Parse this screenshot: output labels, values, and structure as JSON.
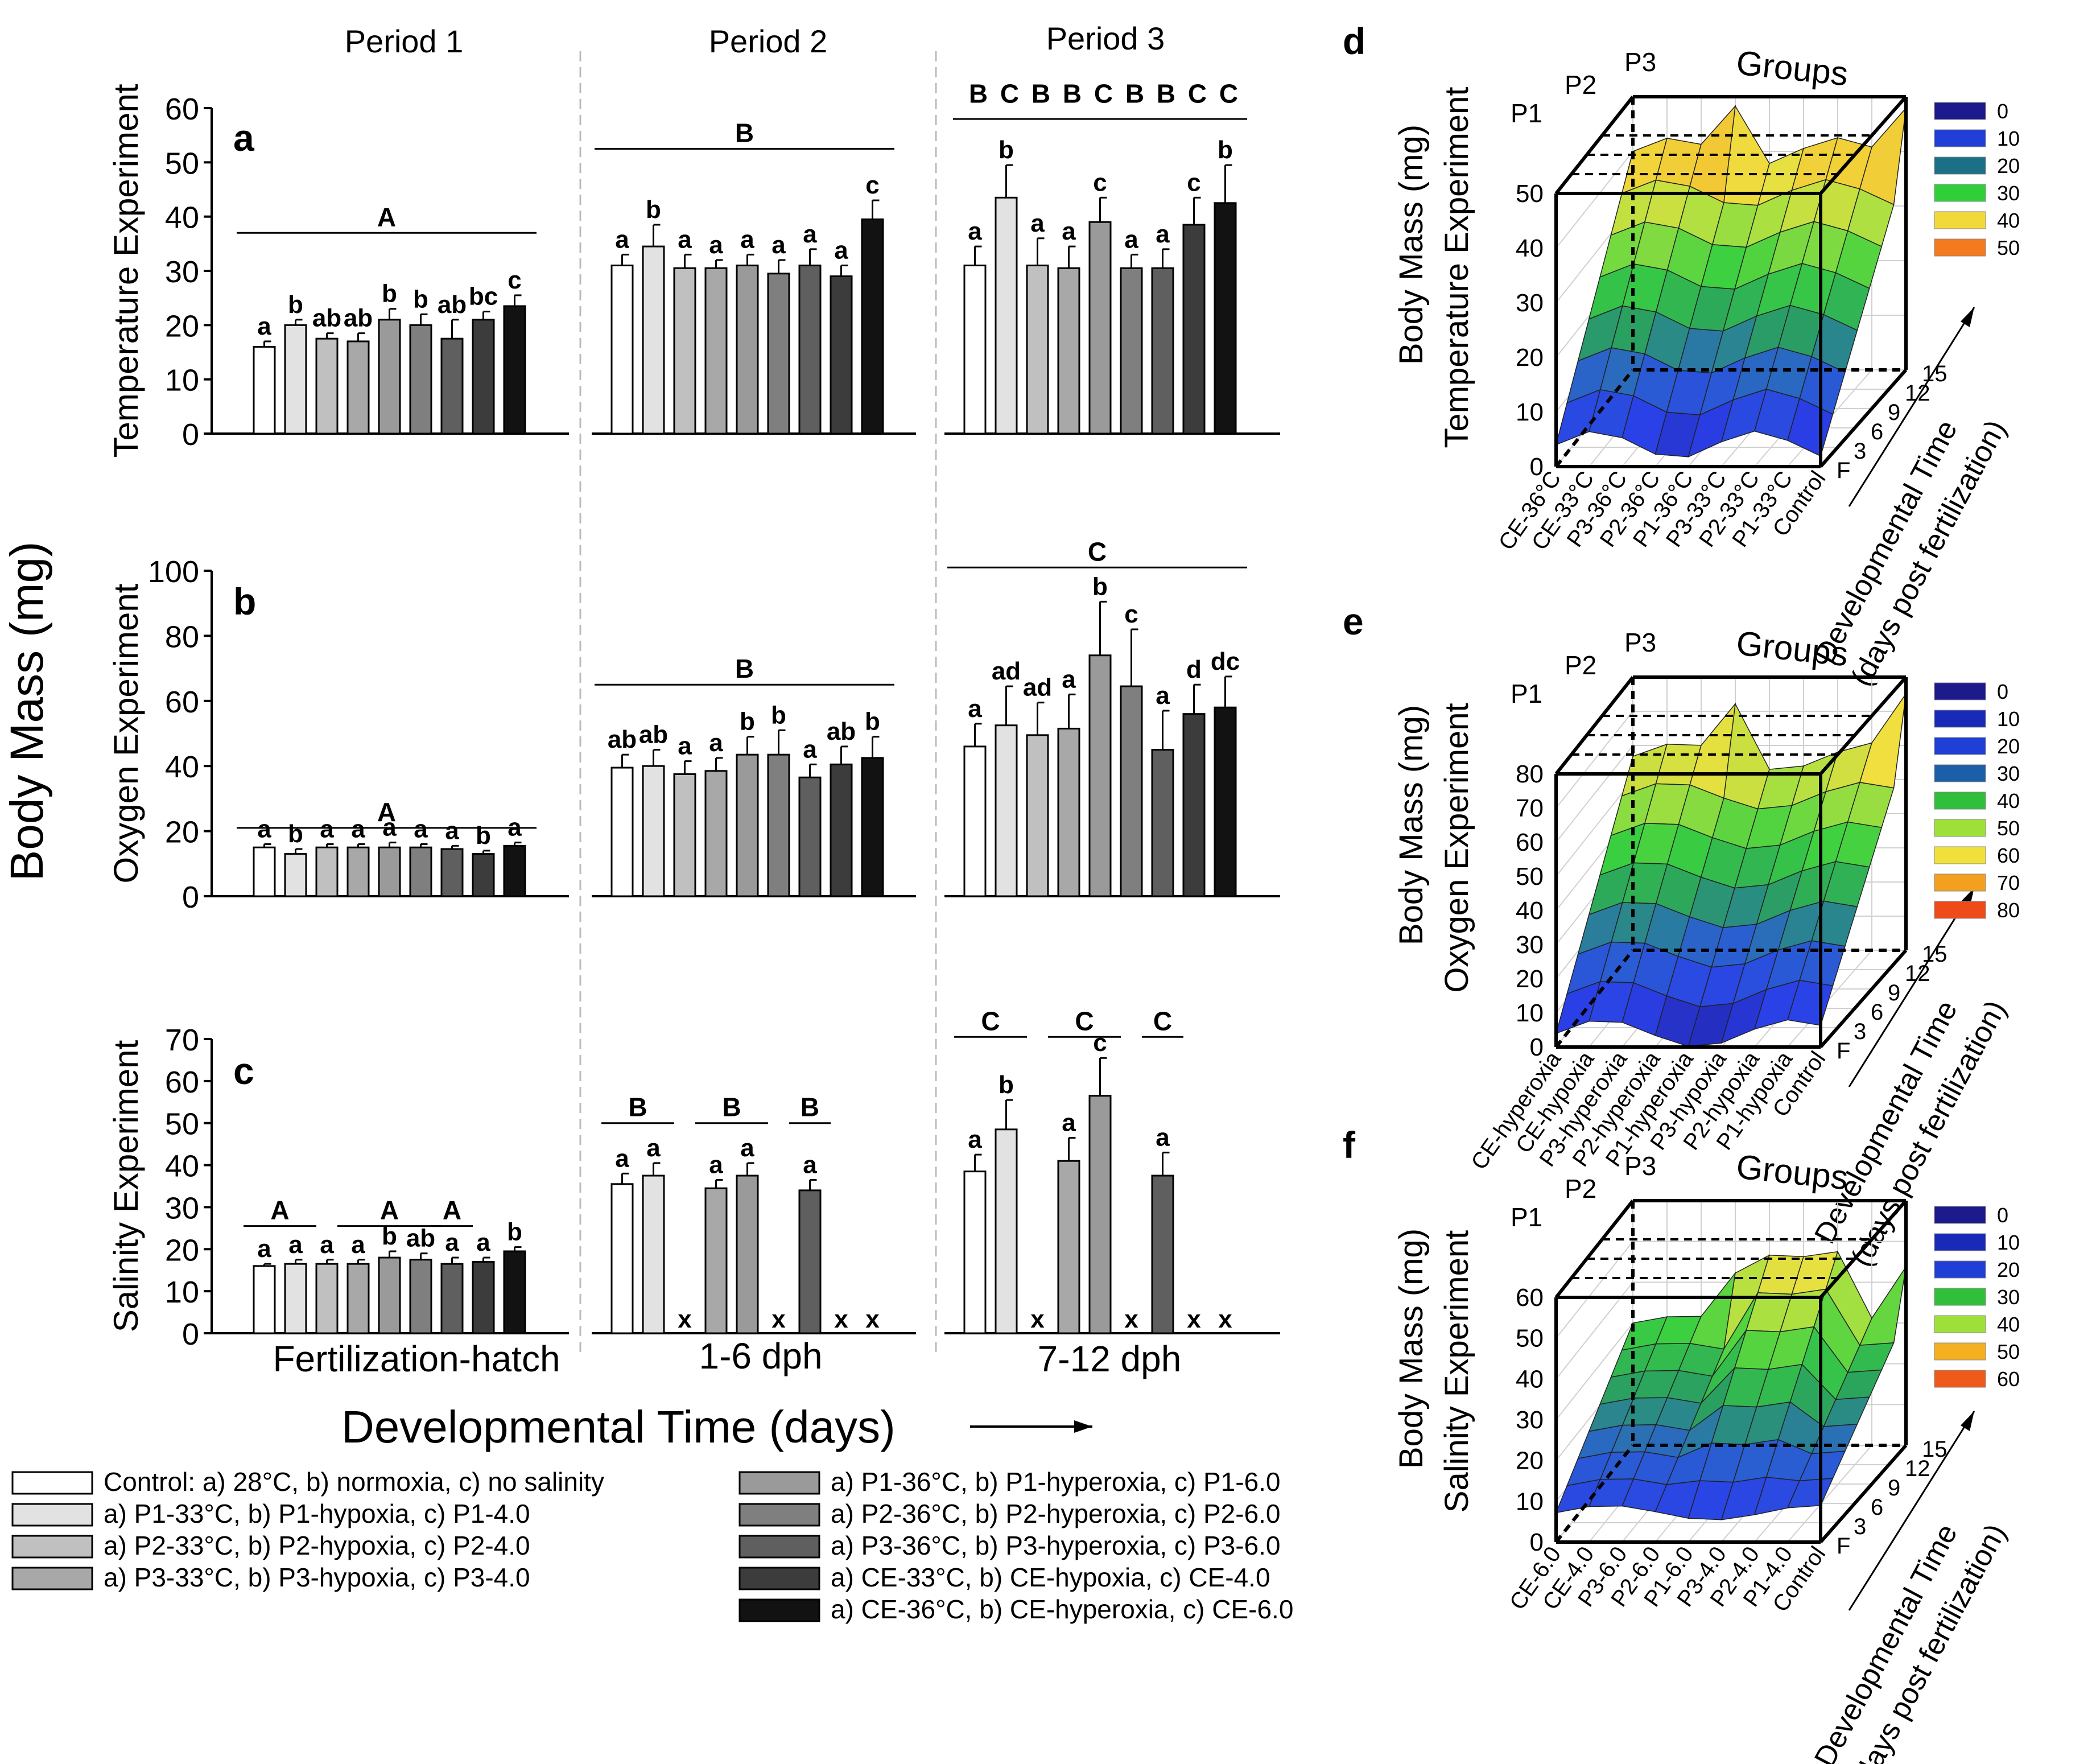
{
  "figure": {
    "ylabel_main": "Body Mass (mg)",
    "xlabel_main": "Developmental Time (days)",
    "arrow_char": "⟶"
  },
  "colors": {
    "grays": [
      "#ffffff",
      "#e2e2e2",
      "#c0c0c0",
      "#a8a8a8",
      "#9a9a9a",
      "#7f7f7f",
      "#5f5f5f",
      "#3c3c3c",
      "#121212"
    ]
  },
  "legend": {
    "items": [
      "Control: a) 28°C, b) normoxia, c) no salinity",
      "a) P1-33°C, b) P1-hypoxia, c) P1-4.0",
      "a) P2-33°C, b) P2-hypoxia, c) P2-4.0",
      "a) P3-33°C, b) P3-hypoxia, c) P3-4.0",
      "a) P1-36°C, b) P1-hyperoxia, c) P1-6.0",
      "a) P2-36°C, b) P2-hyperoxia, c) P2-6.0",
      "a) P3-36°C, b) P3-hyperoxia, c) P3-6.0",
      "a) CE-33°C, b) CE-hypoxia, c) CE-4.0",
      "a) CE-36°C, b) CE-hyperoxia, c) CE-6.0"
    ]
  },
  "chart_data": [
    {
      "id": "a",
      "type": "bar",
      "panel_label": "a",
      "ylabel": "Temperature Experiment",
      "ylim": [
        0,
        60
      ],
      "yticks": [
        "0",
        "10",
        "20",
        "30",
        "40",
        "50",
        "60"
      ],
      "period_titles": [
        "Period 1",
        "Period 2",
        "Period 3"
      ],
      "categories": [
        "Fertilization-hatch",
        "1-6 dph",
        "7-12 dph"
      ],
      "groups": [
        {
          "values": [
            16,
            20,
            17.5,
            17,
            21,
            20,
            17.5,
            21,
            23.5
          ],
          "errors": [
            1,
            1,
            1,
            1.5,
            2,
            2,
            3.5,
            1.5,
            2
          ],
          "letters": [
            "a",
            "b",
            "ab",
            "ab",
            "b",
            "b",
            "ab",
            "bc",
            "c"
          ]
        },
        {
          "values": [
            31,
            34.5,
            30.5,
            30.5,
            31,
            29.5,
            31,
            29,
            39.5
          ],
          "errors": [
            2,
            4,
            2.5,
            1.5,
            2,
            2.5,
            3,
            2,
            3.5
          ],
          "letters": [
            "a",
            "b",
            "a",
            "a",
            "a",
            "a",
            "a",
            "a",
            "c"
          ]
        },
        {
          "values": [
            31,
            43.5,
            31,
            30.5,
            39,
            30.5,
            30.5,
            38.5,
            42.5
          ],
          "errors": [
            3.5,
            6,
            5,
            4,
            4.5,
            2.5,
            3.5,
            5,
            7
          ],
          "letters": [
            "a",
            "b",
            "a",
            "a",
            "c",
            "a",
            "a",
            "c",
            "b"
          ]
        }
      ],
      "group_lines": [
        {
          "label": "A",
          "g0": 0,
          "g1": 0,
          "at": 37
        },
        {
          "label": "B",
          "g0": 1,
          "g1": 1,
          "at": 52.5
        }
      ],
      "top_letters": {
        "group": 2,
        "at": 61,
        "line_at": 58,
        "letters": [
          "B",
          "C",
          "B",
          "B",
          "C",
          "B",
          "B",
          "C",
          "C"
        ]
      },
      "missing": [
        [],
        [],
        []
      ]
    },
    {
      "id": "b",
      "type": "bar",
      "panel_label": "b",
      "ylabel": "Oxygen Experiment",
      "ylim": [
        0,
        100
      ],
      "yticks": [
        "0",
        "20",
        "40",
        "60",
        "80",
        "100"
      ],
      "categories": [
        "Fertilization-hatch",
        "1-6 dph",
        "7-12 dph"
      ],
      "groups": [
        {
          "values": [
            15,
            13,
            15,
            15,
            15,
            15,
            14.5,
            13,
            15.5
          ],
          "errors": [
            1,
            1.5,
            1,
            1,
            1.5,
            1,
            1,
            1,
            1
          ],
          "letters": [
            "a",
            "b",
            "a",
            "a",
            "a",
            "a",
            "a",
            "b",
            "a"
          ]
        },
        {
          "values": [
            39.5,
            40,
            37.5,
            38.5,
            43.5,
            43.5,
            36.5,
            40.5,
            42.5
          ],
          "errors": [
            4,
            5,
            4,
            4,
            5.5,
            7.5,
            4,
            5.5,
            6.5
          ],
          "letters": [
            "ab",
            "ab",
            "a",
            "a",
            "b",
            "b",
            "a",
            "ab",
            "b"
          ]
        },
        {
          "values": [
            46,
            52.5,
            49.5,
            51.5,
            74,
            64.5,
            45,
            56,
            58
          ],
          "errors": [
            7,
            12,
            10,
            10.5,
            16.5,
            17.5,
            12,
            9,
            9.5
          ],
          "letters": [
            "a",
            "ad",
            "ad",
            "a",
            "b",
            "c",
            "a",
            "d",
            "dc"
          ]
        }
      ],
      "group_lines": [
        {
          "label": "A",
          "g0": 0,
          "g1": 0,
          "at": 21
        },
        {
          "label": "B",
          "g0": 1,
          "g1": 1,
          "at": 65
        },
        {
          "label": "C",
          "g0": 2,
          "g1": 2,
          "at": 101
        }
      ],
      "missing": [
        [],
        [],
        []
      ]
    },
    {
      "id": "c",
      "type": "bar",
      "panel_label": "c",
      "ylabel": "Salinity Experiment",
      "ylim": [
        0,
        70
      ],
      "yticks": [
        "0",
        "10",
        "20",
        "30",
        "40",
        "50",
        "60",
        "70"
      ],
      "categories": [
        "Fertilization-hatch",
        "1-6 dph",
        "7-12 dph"
      ],
      "groups": [
        {
          "values": [
            16,
            16.5,
            16.5,
            16.5,
            18,
            17.5,
            16.5,
            17,
            19.5
          ],
          "errors": [
            0.5,
            1,
            1,
            1,
            1.5,
            1.5,
            1.5,
            1,
            1
          ],
          "letters": [
            "a",
            "a",
            "a",
            "a",
            "b",
            "ab",
            "a",
            "a",
            "b"
          ]
        },
        {
          "values": [
            35.5,
            37.5,
            null,
            34.5,
            37.5,
            null,
            34,
            null,
            null
          ],
          "errors": [
            2.5,
            3,
            0,
            2,
            3,
            0,
            2.5,
            0,
            0
          ],
          "letters": [
            "a",
            "a",
            "",
            "a",
            "a",
            "",
            "a",
            "",
            ""
          ]
        },
        {
          "values": [
            38.5,
            48.5,
            null,
            41,
            56.5,
            null,
            37.5,
            null,
            null
          ],
          "errors": [
            4,
            7,
            0,
            5.5,
            9,
            0,
            5.5,
            0,
            0
          ],
          "letters": [
            "a",
            "b",
            "",
            "a",
            "c",
            "",
            "a",
            "",
            ""
          ]
        }
      ],
      "group_lines": [
        {
          "label": "A",
          "g0": 0,
          "bars": [
            0,
            1
          ],
          "at": 25.5
        },
        {
          "label": "A",
          "g0": 0,
          "bars": [
            3,
            5
          ],
          "at": 25.5
        },
        {
          "label": "A",
          "g0": 0,
          "bars": [
            6,
            6
          ],
          "at": 25.5
        },
        {
          "label": "B",
          "g0": 1,
          "bars": [
            0,
            1
          ],
          "at": 50
        },
        {
          "label": "B",
          "g0": 1,
          "bars": [
            3,
            4
          ],
          "at": 50
        },
        {
          "label": "B",
          "g0": 1,
          "bars": [
            6,
            6
          ],
          "at": 50
        },
        {
          "label": "C",
          "g0": 2,
          "bars": [
            0,
            1
          ],
          "at": 70.5
        },
        {
          "label": "C",
          "g0": 2,
          "bars": [
            3,
            4
          ],
          "at": 70.5
        },
        {
          "label": "C",
          "g0": 2,
          "bars": [
            6,
            6
          ],
          "at": 70.5
        }
      ],
      "missing_mark": "x",
      "missing": [
        [],
        [
          2,
          5,
          7,
          8
        ],
        [
          2,
          5,
          7,
          8
        ]
      ]
    },
    {
      "id": "d",
      "type": "surface3d",
      "panel_label": "d",
      "ylabel1": "Body Mass (mg)",
      "ylabel2": "Temperature Experiment",
      "title": "Groups",
      "period_labels": [
        "P1",
        "P2",
        "P3"
      ],
      "zticks": [
        "0",
        "10",
        "20",
        "30",
        "40",
        "50"
      ],
      "zmax": 50,
      "xcats": [
        "CE-36°C",
        "CE-33°C",
        "P3-36°C",
        "P2-36°C",
        "P1-36°C",
        "P3-33°C",
        "P2-33°C",
        "P1-33°C",
        "Control"
      ],
      "ycats": [
        "F",
        "3",
        "6",
        "9",
        "12",
        "15"
      ],
      "ylabel_time1": "Developmental Time",
      "ylabel_time2": "(days post fertilization)",
      "legend_values": [
        "0",
        "10",
        "20",
        "30",
        "40",
        "50"
      ],
      "legend_colors": [
        "#1c1a8c",
        "#1f3fd6",
        "#1b6f86",
        "#2fcf3a",
        "#f2d93a",
        "#f47a1f"
      ]
    },
    {
      "id": "e",
      "type": "surface3d",
      "panel_label": "e",
      "ylabel1": "Body Mass (mg)",
      "ylabel2": "Oxygen Experiment",
      "title": "Groups",
      "period_labels": [
        "P1",
        "P2",
        "P3"
      ],
      "zticks": [
        "0",
        "10",
        "20",
        "30",
        "40",
        "50",
        "60",
        "70",
        "80"
      ],
      "zmax": 80,
      "xcats": [
        "CE-hyperoxia",
        "CE-hypoxia",
        "P3-hyperoxia",
        "P2-hyperoxia",
        "P1-hyperoxia",
        "P3-hypoxia",
        "P2-hypoxia",
        "P1-hypoxia",
        "Control"
      ],
      "ycats": [
        "F",
        "3",
        "6",
        "9",
        "12",
        "15"
      ],
      "ylabel_time1": "Developmental Time",
      "ylabel_time2": "(days post fertilization)",
      "legend_values": [
        "0",
        "10",
        "20",
        "30",
        "40",
        "50",
        "60",
        "70",
        "80"
      ],
      "legend_colors": [
        "#1c1a8c",
        "#1a2ab8",
        "#1f3fd6",
        "#1b5fa8",
        "#2fbf3a",
        "#9ee03a",
        "#f2e03a",
        "#f4a01f",
        "#ef4a1a"
      ]
    },
    {
      "id": "f",
      "type": "surface3d",
      "panel_label": "f",
      "ylabel1": "Body Mass (mg)",
      "ylabel2": "Salinity Experiment",
      "title": "Groups",
      "period_labels": [
        "P1",
        "P2",
        "P3"
      ],
      "zticks": [
        "0",
        "10",
        "20",
        "30",
        "40",
        "50",
        "60"
      ],
      "zmax": 60,
      "xcats": [
        "CE-6.0",
        "CE-4.0",
        "P3-6.0",
        "P2-6.0",
        "P1-6.0",
        "P3-4.0",
        "P2-4.0",
        "P1-4.0",
        "Control"
      ],
      "ycats": [
        "F",
        "3",
        "6",
        "9",
        "12",
        "15"
      ],
      "ylabel_time1": "Developmental Time",
      "ylabel_time2": "(days post fertilization)",
      "legend_values": [
        "0",
        "10",
        "20",
        "30",
        "40",
        "50",
        "60"
      ],
      "legend_colors": [
        "#1c1a8c",
        "#1a2ab8",
        "#1f3fd6",
        "#2fbf3a",
        "#9ee03a",
        "#f4b01f",
        "#ef5a1a"
      ]
    }
  ]
}
